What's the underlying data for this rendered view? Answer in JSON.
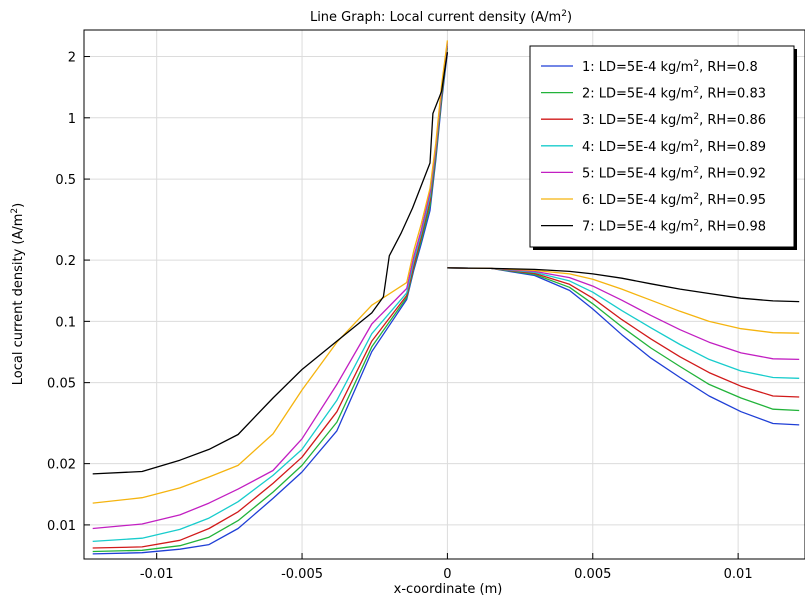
{
  "chart_data": {
    "type": "line",
    "title": "Line Graph: Local current density (A/m",
    "title_sup": "2",
    "title_tail": ")",
    "xlabel": "x-coordinate (m)",
    "ylabel": "Local current density (A/m",
    "ylabel_sup": "2",
    "ylabel_tail": ")",
    "xlim": [
      -0.0125,
      0.0123
    ],
    "ylim": [
      0.0068,
      2.7
    ],
    "yscale": "log",
    "grid": true,
    "legend_position": "top-right",
    "x_ticks": [
      {
        "value": -0.01,
        "label": "-0.01"
      },
      {
        "value": -0.005,
        "label": "-0.005"
      },
      {
        "value": 0,
        "label": "0"
      },
      {
        "value": 0.005,
        "label": "0.005"
      },
      {
        "value": 0.01,
        "label": "0.01"
      }
    ],
    "y_ticks": [
      {
        "value": 0.01,
        "label": "0.01"
      },
      {
        "value": 0.02,
        "label": "0.02"
      },
      {
        "value": 0.05,
        "label": "0.05"
      },
      {
        "value": 0.1,
        "label": "0.1"
      },
      {
        "value": 0.2,
        "label": "0.2"
      },
      {
        "value": 0.5,
        "label": "0.5"
      },
      {
        "value": 1,
        "label": "1"
      },
      {
        "value": 2,
        "label": "2"
      }
    ],
    "series": [
      {
        "name": "1: LD=5E-4 kg/m",
        "name_sup": "2",
        "name_tail": ", RH=0.8",
        "color": "#1f3fd6",
        "left": {
          "x": [
            -0.0122,
            -0.0105,
            -0.0092,
            -0.0082,
            -0.0072,
            -0.006,
            -0.005,
            -0.0038,
            -0.0026,
            -0.0014,
            -0.00115,
            -0.0009,
            -0.0006,
            -0.0004,
            -0.0002,
            0.0
          ],
          "y": [
            0.0072,
            0.0073,
            0.0076,
            0.008,
            0.0096,
            0.0135,
            0.0182,
            0.029,
            0.071,
            0.128,
            0.18,
            0.24,
            0.35,
            0.62,
            1.2,
            2.1
          ]
        },
        "right": {
          "x": [
            0.0,
            0.0015,
            0.003,
            0.0042,
            0.005,
            0.006,
            0.007,
            0.008,
            0.009,
            0.0101,
            0.0112,
            0.0121
          ],
          "y": [
            0.183,
            0.182,
            0.168,
            0.142,
            0.115,
            0.086,
            0.066,
            0.053,
            0.043,
            0.036,
            0.0315,
            0.031
          ]
        }
      },
      {
        "name": "2: LD=5E-4 kg/m",
        "name_sup": "2",
        "name_tail": ", RH=0.83",
        "color": "#22b33a",
        "left": {
          "x": [
            -0.0122,
            -0.0105,
            -0.0092,
            -0.0082,
            -0.0072,
            -0.006,
            -0.005,
            -0.0038,
            -0.0026,
            -0.0014,
            -0.00115,
            -0.0009,
            -0.0006,
            -0.0004,
            -0.0002,
            0.0
          ],
          "y": [
            0.0074,
            0.0075,
            0.0079,
            0.0087,
            0.0105,
            0.0145,
            0.0196,
            0.032,
            0.075,
            0.131,
            0.185,
            0.25,
            0.37,
            0.65,
            1.25,
            2.2
          ]
        },
        "right": {
          "x": [
            0.0,
            0.0015,
            0.003,
            0.0042,
            0.005,
            0.006,
            0.007,
            0.008,
            0.009,
            0.0101,
            0.0112,
            0.0121
          ],
          "y": [
            0.183,
            0.182,
            0.17,
            0.147,
            0.122,
            0.094,
            0.074,
            0.06,
            0.049,
            0.042,
            0.037,
            0.0365
          ]
        }
      },
      {
        "name": "3: LD=5E-4 kg/m",
        "name_sup": "2",
        "name_tail": ", RH=0.86",
        "color": "#d11a1a",
        "left": {
          "x": [
            -0.0122,
            -0.0105,
            -0.0092,
            -0.0082,
            -0.0072,
            -0.006,
            -0.005,
            -0.0038,
            -0.0026,
            -0.0014,
            -0.00115,
            -0.0009,
            -0.0006,
            -0.0004,
            -0.0002,
            0.0
          ],
          "y": [
            0.0077,
            0.0078,
            0.0084,
            0.0096,
            0.0116,
            0.016,
            0.0215,
            0.036,
            0.08,
            0.134,
            0.19,
            0.26,
            0.39,
            0.68,
            1.3,
            2.25
          ]
        },
        "right": {
          "x": [
            0.0,
            0.0015,
            0.003,
            0.0042,
            0.005,
            0.006,
            0.007,
            0.008,
            0.009,
            0.0101,
            0.0112,
            0.0121
          ],
          "y": [
            0.183,
            0.182,
            0.172,
            0.152,
            0.13,
            0.102,
            0.082,
            0.067,
            0.056,
            0.048,
            0.043,
            0.0425
          ]
        }
      },
      {
        "name": "4: LD=5E-4 kg/m",
        "name_sup": "2",
        "name_tail": ", RH=0.89",
        "color": "#18cccc",
        "left": {
          "x": [
            -0.0122,
            -0.0105,
            -0.0092,
            -0.0082,
            -0.0072,
            -0.006,
            -0.005,
            -0.0038,
            -0.0026,
            -0.0014,
            -0.00115,
            -0.0009,
            -0.0006,
            -0.0004,
            -0.0002,
            0.0
          ],
          "y": [
            0.0083,
            0.0086,
            0.0095,
            0.0108,
            0.013,
            0.0175,
            0.0235,
            0.041,
            0.087,
            0.138,
            0.2,
            0.27,
            0.41,
            0.7,
            1.35,
            2.3
          ]
        },
        "right": {
          "x": [
            0.0,
            0.0015,
            0.003,
            0.0042,
            0.005,
            0.006,
            0.007,
            0.008,
            0.009,
            0.0101,
            0.0112,
            0.0121
          ],
          "y": [
            0.183,
            0.182,
            0.174,
            0.158,
            0.139,
            0.113,
            0.093,
            0.077,
            0.065,
            0.057,
            0.053,
            0.0525
          ]
        }
      },
      {
        "name": "5: LD=5E-4 kg/m",
        "name_sup": "2",
        "name_tail": ", RH=0.92",
        "color": "#c21fc2",
        "left": {
          "x": [
            -0.0122,
            -0.0105,
            -0.0092,
            -0.0082,
            -0.0072,
            -0.006,
            -0.005,
            -0.0038,
            -0.0026,
            -0.0014,
            -0.00115,
            -0.0009,
            -0.0006,
            -0.0004,
            -0.0002,
            0.0
          ],
          "y": [
            0.0096,
            0.0101,
            0.0112,
            0.0128,
            0.015,
            0.0185,
            0.0265,
            0.049,
            0.097,
            0.145,
            0.21,
            0.28,
            0.43,
            0.72,
            1.4,
            2.35
          ]
        },
        "right": {
          "x": [
            0.0,
            0.0015,
            0.003,
            0.0042,
            0.005,
            0.006,
            0.007,
            0.008,
            0.009,
            0.0101,
            0.0112,
            0.0121
          ],
          "y": [
            0.183,
            0.182,
            0.176,
            0.164,
            0.149,
            0.127,
            0.107,
            0.091,
            0.079,
            0.07,
            0.0655,
            0.065
          ]
        }
      },
      {
        "name": "6: LD=5E-4 kg/m",
        "name_sup": "2",
        "name_tail": ", RH=0.95",
        "color": "#f5b40f",
        "left": {
          "x": [
            -0.0122,
            -0.0105,
            -0.0092,
            -0.0082,
            -0.0072,
            -0.006,
            -0.005,
            -0.0038,
            -0.0026,
            -0.0014,
            -0.00115,
            -0.0009,
            -0.0006,
            -0.0004,
            -0.0002,
            0.0
          ],
          "y": [
            0.0128,
            0.0136,
            0.0152,
            0.0172,
            0.0196,
            0.028,
            0.046,
            0.079,
            0.12,
            0.155,
            0.225,
            0.3,
            0.45,
            0.75,
            1.45,
            2.4
          ]
        },
        "right": {
          "x": [
            0.0,
            0.0015,
            0.003,
            0.0042,
            0.005,
            0.006,
            0.007,
            0.008,
            0.009,
            0.0101,
            0.0112,
            0.0121
          ],
          "y": [
            0.183,
            0.182,
            0.178,
            0.171,
            0.161,
            0.144,
            0.127,
            0.112,
            0.1,
            0.092,
            0.088,
            0.0875
          ]
        }
      },
      {
        "name": "7: LD=5E-4 kg/m",
        "name_sup": "2",
        "name_tail": ", RH=0.98",
        "color": "#000000",
        "left": {
          "x": [
            -0.0122,
            -0.0105,
            -0.0092,
            -0.0082,
            -0.0072,
            -0.006,
            -0.005,
            -0.0038,
            -0.0026,
            -0.0022,
            -0.002,
            -0.0016,
            -0.0012,
            -0.0006,
            -0.0005,
            -0.0002,
            0.0
          ],
          "y": [
            0.0178,
            0.0183,
            0.0208,
            0.0235,
            0.0278,
            0.042,
            0.058,
            0.08,
            0.11,
            0.132,
            0.21,
            0.27,
            0.36,
            0.6,
            1.05,
            1.35,
            2.1
          ]
        },
        "right": {
          "x": [
            0.0,
            0.0015,
            0.003,
            0.0042,
            0.005,
            0.006,
            0.007,
            0.008,
            0.009,
            0.0101,
            0.0112,
            0.0121
          ],
          "y": [
            0.183,
            0.182,
            0.18,
            0.176,
            0.171,
            0.163,
            0.153,
            0.144,
            0.137,
            0.13,
            0.126,
            0.125
          ]
        }
      }
    ]
  }
}
